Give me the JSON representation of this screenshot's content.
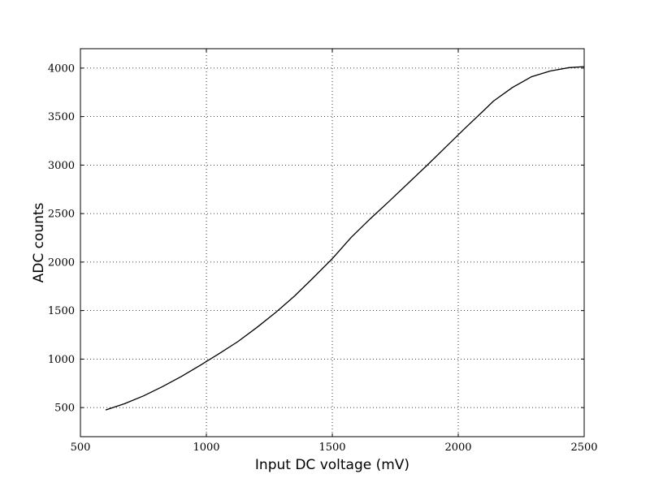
{
  "chart_data": {
    "type": "line",
    "title": "",
    "xlabel": "Input DC voltage (mV)",
    "ylabel": "ADC counts",
    "xlim": [
      500,
      2500
    ],
    "ylim": [
      200,
      4200
    ],
    "x_ticks": [
      500,
      1000,
      1500,
      2000,
      2500
    ],
    "y_ticks": [
      500,
      1000,
      1500,
      2000,
      2500,
      3000,
      3500,
      4000
    ],
    "grid": true,
    "grid_style": "dotted",
    "line_color": "#000000",
    "series": [
      {
        "x": [
          600,
          675,
          750,
          825,
          900,
          975,
          1050,
          1125,
          1200,
          1275,
          1350,
          1425,
          1500,
          1575,
          1650,
          1725,
          1800,
          1875,
          1950,
          2025,
          2100,
          2140,
          2215,
          2290,
          2365,
          2440,
          2500
        ],
        "values": [
          475,
          540,
          620,
          715,
          820,
          935,
          1055,
          1180,
          1325,
          1480,
          1650,
          1840,
          2035,
          2255,
          2445,
          2625,
          2810,
          2995,
          3185,
          3375,
          3560,
          3660,
          3800,
          3910,
          3970,
          4005,
          4015
        ]
      }
    ]
  }
}
